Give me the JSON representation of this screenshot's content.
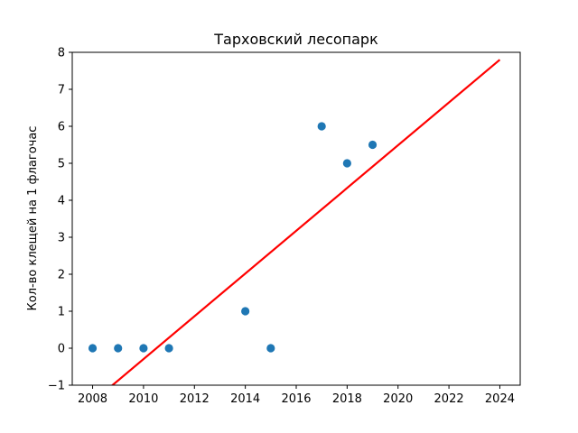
{
  "chart_data": {
    "type": "scatter",
    "title": "Тарховский лесопарк",
    "xlabel": "",
    "ylabel": "Кол-во клещей на 1 флагочас",
    "xlim": [
      2007.2,
      2024.8
    ],
    "ylim": [
      -1,
      8
    ],
    "xticks": [
      "2008",
      "2010",
      "2012",
      "2014",
      "2016",
      "2018",
      "2020",
      "2022",
      "2024"
    ],
    "yticks": [
      "−1",
      "0",
      "1",
      "2",
      "3",
      "4",
      "5",
      "6",
      "7",
      "8"
    ],
    "grid": false,
    "series": [
      {
        "kind": "scatter",
        "color": "#1f77b4",
        "x": [
          2008,
          2009,
          2010,
          2011,
          2014,
          2015,
          2017,
          2018,
          2019
        ],
        "y": [
          0,
          0,
          0,
          0,
          1,
          0,
          6,
          5,
          5.5
        ]
      },
      {
        "kind": "line",
        "color": "#ff0000",
        "x": [
          2008,
          2024
        ],
        "y": [
          -1.45,
          7.8
        ]
      }
    ]
  }
}
